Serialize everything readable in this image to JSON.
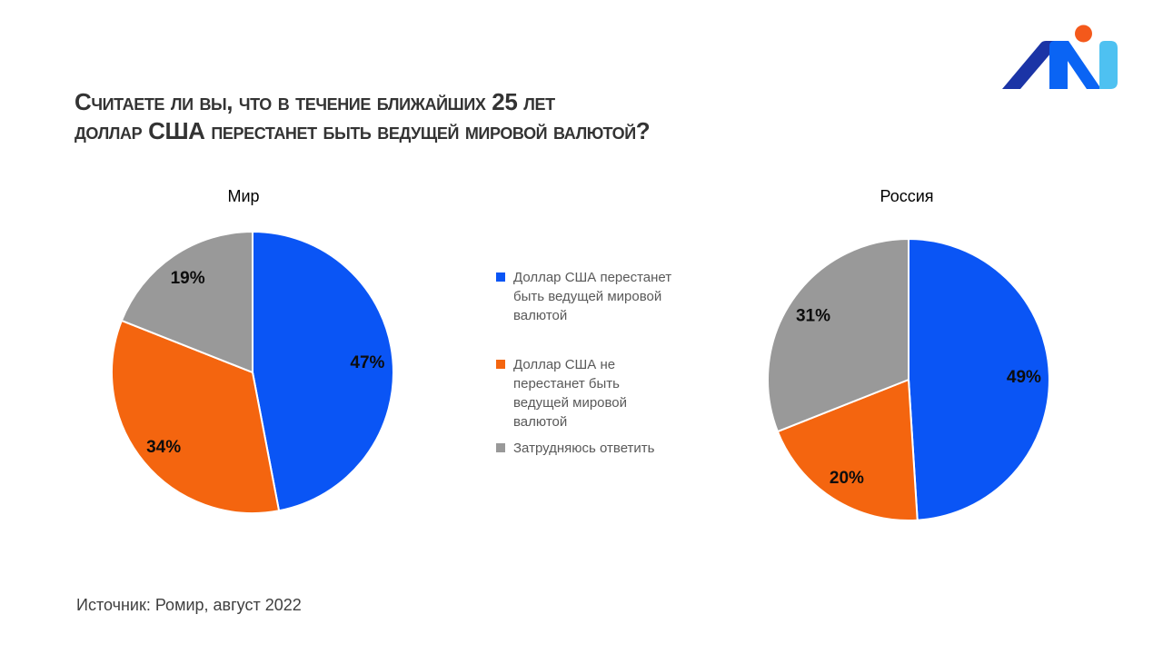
{
  "page": {
    "background": "#ffffff"
  },
  "title": {
    "lines": [
      "Считаете ли вы, что в течение ближайших 25 лет",
      "доллар США перестанет быть ведущей мировой валютой?"
    ]
  },
  "logo": {
    "description": "stylized M monogram with orange dot",
    "colors": {
      "dark_blue": "#1B34A6",
      "blue": "#0A64F4",
      "light_blue": "#4EC1F1",
      "orange_dot": "#F4591B"
    }
  },
  "chart_data": [
    {
      "type": "pie",
      "title": "Мир",
      "categories": [
        "Доллар США перестанет быть ведущей мировой валютой",
        "Доллар США не перестанет быть ведущей мировой валютой",
        "Затрудняюсь ответить"
      ],
      "values": [
        47,
        34,
        19
      ],
      "data_labels": [
        "47%",
        "34%",
        "19%"
      ],
      "colors": [
        "#0A55F5",
        "#F4650F",
        "#999999"
      ],
      "start_angle_deg": 0,
      "direction": "clockwise",
      "slice_border_color": "#ffffff"
    },
    {
      "type": "pie",
      "title": "Россия",
      "categories": [
        "Доллар США перестанет быть ведущей мировой валютой",
        "Доллар США не перестанет быть ведущей мировой валютой",
        "Затрудняюсь ответить"
      ],
      "values": [
        49,
        20,
        31
      ],
      "data_labels": [
        "49%",
        "20%",
        "31%"
      ],
      "colors": [
        "#0A55F5",
        "#F4650F",
        "#999999"
      ],
      "start_angle_deg": 0,
      "direction": "clockwise",
      "slice_border_color": "#ffffff"
    }
  ],
  "legend": {
    "position": "center-between-pies",
    "items": [
      {
        "color": "#0A55F5",
        "lines": [
          "Доллар США перестанет",
          "быть ведущей мировой",
          "валютой"
        ]
      },
      {
        "color": "#F4650F",
        "lines": [
          "Доллар США не",
          "перестанет быть",
          "ведущей мировой",
          "валютой"
        ]
      },
      {
        "color": "#999999",
        "lines": [
          "Затрудняюсь ответить"
        ]
      }
    ]
  },
  "source": {
    "text": "Источник: Ромир, август 2022"
  }
}
